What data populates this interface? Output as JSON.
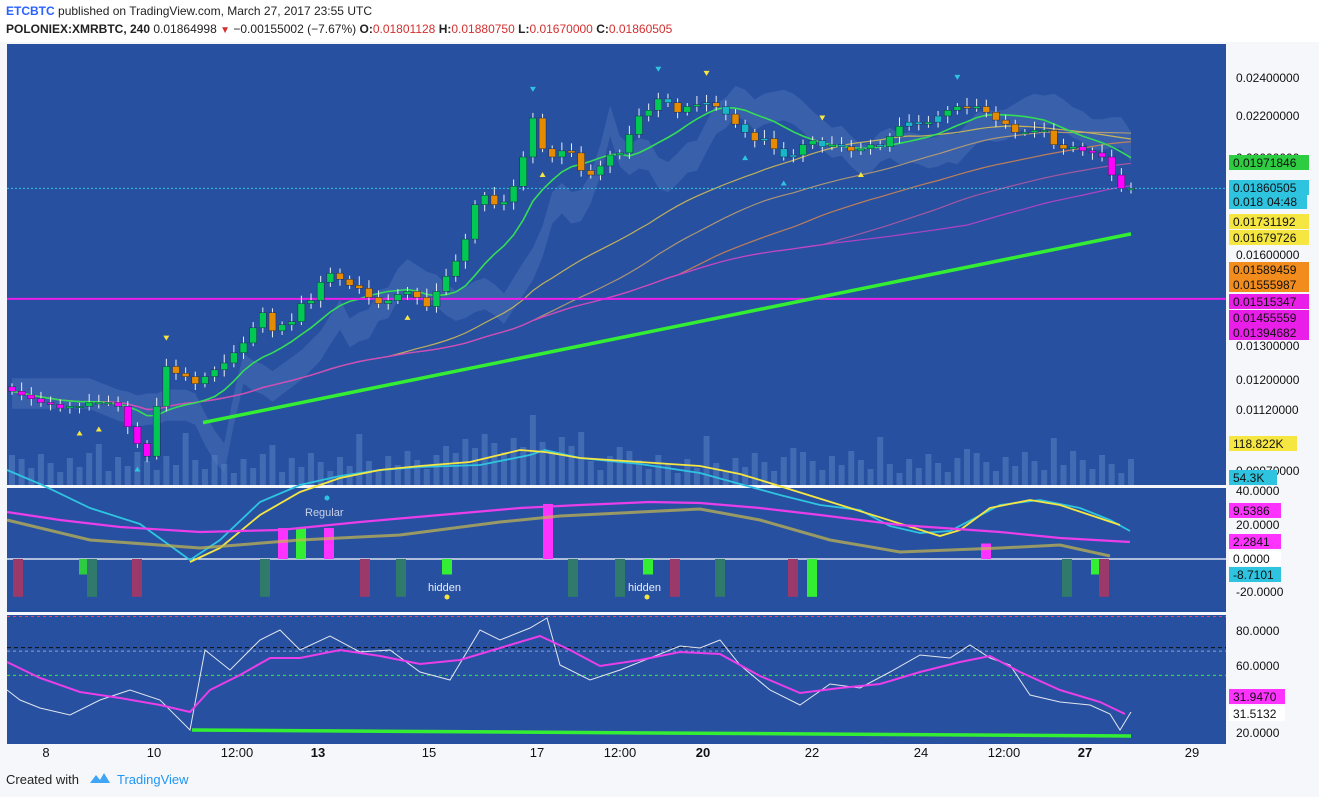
{
  "header": {
    "author": "ETCBTC",
    "published_text": "published on TradingView.com, March 27, 2017 23:55 UTC",
    "symbol": "POLONIEX:XMRBTC, 240",
    "last": "0.01864998",
    "change": "−0.00155002 (−7.67%)",
    "o_label": "O:",
    "o_value": "0.01801128",
    "h_label": "H:",
    "h_value": "0.01880750",
    "l_label": "L:",
    "l_value": "0.01670000",
    "c_label": "C:",
    "c_value": "0.01860505"
  },
  "footer": {
    "created_with": "Created with",
    "brand": "TradingView"
  },
  "colors": {
    "pane_bg": "#2850a0",
    "axis_bg": "#f5f7fa",
    "up_candle": "#00c853",
    "down_candle": "#e68a00",
    "cyan_candle": "#18b6c9",
    "magenta_candle": "#ff00ff",
    "trendline": "#33ee33",
    "resistance": "#e91ee9",
    "ema_fast": "#33dd55"
  },
  "chart_data": [
    {
      "pane": "price",
      "type": "candlestick",
      "y_ticks": [
        "0.02400000",
        "0.02200000",
        "0.02000000",
        "0.01800000",
        "0.01600000",
        "0.01300000",
        "0.01200000",
        "0.01120000",
        "0.00970000"
      ],
      "price_tags": [
        {
          "text": "0.01971846",
          "bg": "#2ecc40",
          "fg": "#000000"
        },
        {
          "text": "0.01860505",
          "bg": "#2ec4e0",
          "fg": "#000000"
        },
        {
          "text": "0.018",
          "bg": "#2ec4e0",
          "fg": "#000000"
        },
        {
          "text": "04:48",
          "bg": "#2ec4e0",
          "fg": "#000000"
        },
        {
          "text": "0.01731192",
          "bg": "#f5e642",
          "fg": "#000000"
        },
        {
          "text": "0.01679726",
          "bg": "#f5e642",
          "fg": "#000000"
        },
        {
          "text": "0.01589459",
          "bg": "#f28c1c",
          "fg": "#000000"
        },
        {
          "text": "0.01555987",
          "bg": "#f28c1c",
          "fg": "#000000"
        },
        {
          "text": "0.01515347",
          "bg": "#e91ee9",
          "fg": "#ffffff"
        },
        {
          "text": "0.01455559",
          "bg": "#e91ee9",
          "fg": "#ffffff"
        },
        {
          "text": "0.01394682",
          "bg": "#e91ee9",
          "fg": "#ffffff"
        },
        {
          "text": "118.822K",
          "bg": "#f5e642",
          "fg": "#000000"
        },
        {
          "text": "54.3K",
          "bg": "#2ec4e0",
          "fg": "#000000"
        }
      ],
      "resistance_level": 0.01455559,
      "trendline": [
        {
          "x": "Mar 10",
          "y": 0.0109
        },
        {
          "x": "Mar 27",
          "y": 0.01679726
        }
      ],
      "closes": [
        0.0117,
        0.0116,
        0.0115,
        0.0114,
        0.01135,
        0.01125,
        0.0113,
        0.0113,
        0.0114,
        0.0114,
        0.0114,
        0.0113,
        0.0108,
        0.0104,
        0.0101,
        0.0113,
        0.0124,
        0.0122,
        0.0121,
        0.0119,
        0.0121,
        0.0123,
        0.0125,
        0.0128,
        0.0131,
        0.0136,
        0.0141,
        0.0135,
        0.0137,
        0.0138,
        0.0144,
        0.0145,
        0.0151,
        0.0154,
        0.0152,
        0.015,
        0.0149,
        0.0146,
        0.0144,
        0.0145,
        0.0147,
        0.0148,
        0.0146,
        0.0143,
        0.0148,
        0.0153,
        0.0158,
        0.0166,
        0.0179,
        0.0183,
        0.0179,
        0.018,
        0.0187,
        0.02,
        0.0219,
        0.0204,
        0.02,
        0.0203,
        0.0202,
        0.0194,
        0.0192,
        0.0196,
        0.0201,
        0.0202,
        0.0211,
        0.022,
        0.0223,
        0.0229,
        0.0227,
        0.0222,
        0.0225,
        0.0226,
        0.0227,
        0.0225,
        0.0221,
        0.0216,
        0.0212,
        0.0208,
        0.0209,
        0.0204,
        0.02,
        0.0201,
        0.0206,
        0.0208,
        0.0205,
        0.0206,
        0.0205,
        0.0203,
        0.0204,
        0.0206,
        0.0205,
        0.021,
        0.0215,
        0.0217,
        0.0216,
        0.0217,
        0.022,
        0.0223,
        0.0225,
        0.0224,
        0.0225,
        0.0222,
        0.0218,
        0.0216,
        0.0212,
        0.0212,
        0.0213,
        0.0213,
        0.0206,
        0.0204,
        0.0205,
        0.0203,
        0.0202,
        0.02,
        0.0192,
        0.0186,
        0.01860505
      ]
    },
    {
      "pane": "oscillator",
      "type": "line",
      "y_ticks": [
        "40.0000",
        "20.0000",
        "0.0000",
        "-20.0000"
      ],
      "value_tags": [
        {
          "text": "9.5386",
          "bg": "#ff33ff",
          "fg": "#ffffff"
        },
        {
          "text": "2.2841",
          "bg": "#ff33ff",
          "fg": "#ffffff"
        },
        {
          "text": "0.0000",
          "bg": "#ffffff",
          "fg": "#000000"
        },
        {
          "text": "-8.7101",
          "bg": "#2ec4e0",
          "fg": "#000000"
        }
      ],
      "annotations": [
        "Regular",
        "hidden",
        "hidden"
      ]
    },
    {
      "pane": "rsi",
      "type": "line",
      "y_ticks": [
        "80.0000",
        "60.0000",
        "20.0000"
      ],
      "value_tags": [
        {
          "text": "31.9470",
          "bg": "#ff33ff",
          "fg": "#ffffff"
        },
        {
          "text": "31.5132",
          "bg": "#ffffff",
          "fg": "#000000"
        }
      ]
    },
    {
      "pane": "time_axis",
      "x_ticks": [
        "8",
        "10",
        "12:00",
        "13",
        "15",
        "17",
        "12:00",
        "20",
        "22",
        "24",
        "12:00",
        "27",
        "29"
      ]
    }
  ]
}
